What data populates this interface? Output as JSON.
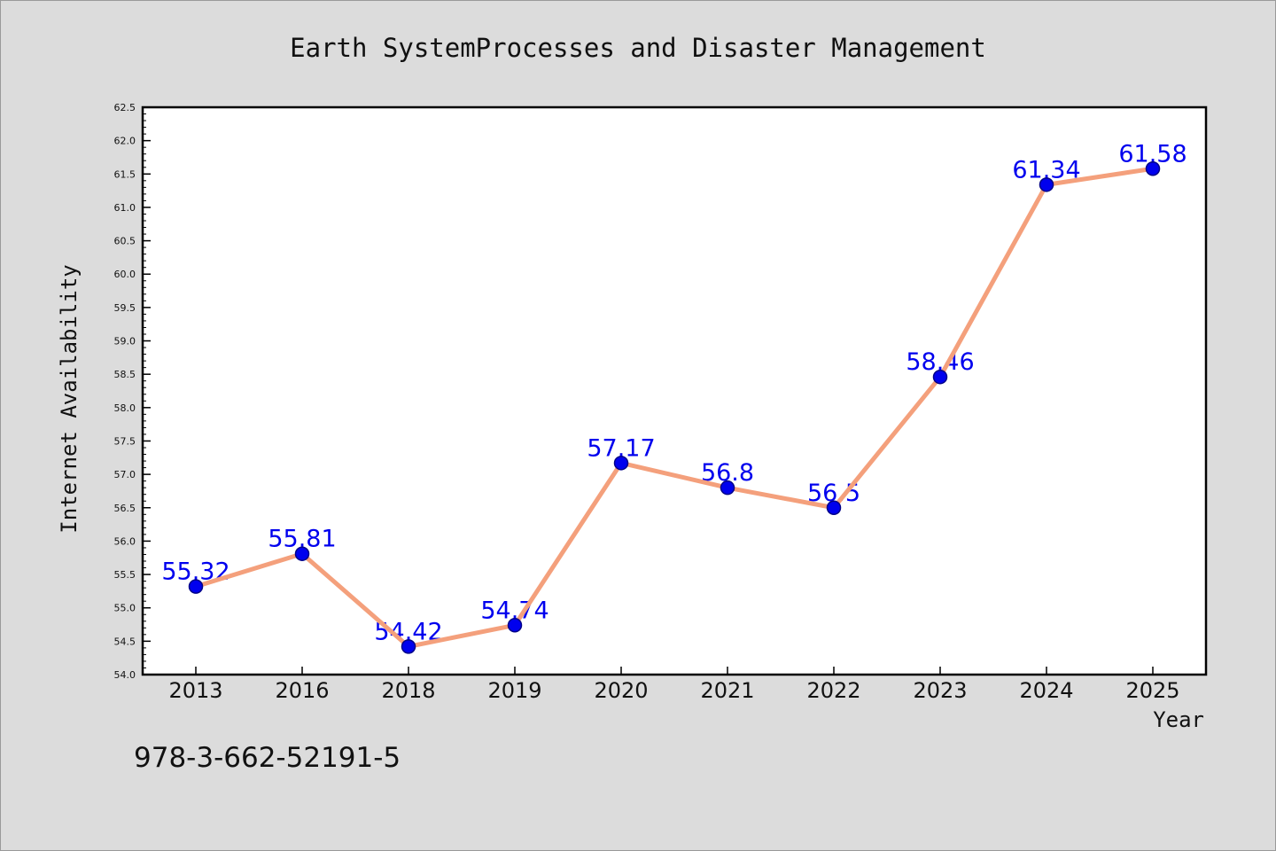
{
  "chart_data": {
    "type": "line",
    "title": "Earth SystemProcesses and Disaster Management",
    "xlabel": "Year",
    "ylabel": "Internet Availability",
    "categories": [
      "2013",
      "2016",
      "2018",
      "2019",
      "2020",
      "2021",
      "2022",
      "2023",
      "2024",
      "2025"
    ],
    "series": [
      {
        "values": [
          55.32,
          55.81,
          54.42,
          54.74,
          57.17,
          56.8,
          56.5,
          58.46,
          61.34,
          61.58
        ],
        "data_labels": [
          "55.32",
          "55.81",
          "54.42",
          "54.74",
          "57.17",
          "56.8",
          "56.5",
          "58.46",
          "61.34",
          "61.58"
        ]
      }
    ],
    "ylim": [
      54.0,
      62.5
    ],
    "yticks": [
      "54.0",
      "54.5",
      "55.0",
      "55.5",
      "56.0",
      "56.5",
      "57.0",
      "57.5",
      "58.0",
      "58.5",
      "59.0",
      "59.5",
      "60.0",
      "60.5",
      "61.0",
      "61.5",
      "62.0",
      "62.5"
    ],
    "grid": false,
    "colors": {
      "line": "#f4a07c",
      "marker": "#0000ee",
      "marker_edge": "#000088",
      "data_label": "#0000ee",
      "plot_bg": "#ffffff",
      "figure_bg": "#dcdcdc"
    }
  },
  "footer": {
    "isbn": "978-3-662-52191-5"
  }
}
